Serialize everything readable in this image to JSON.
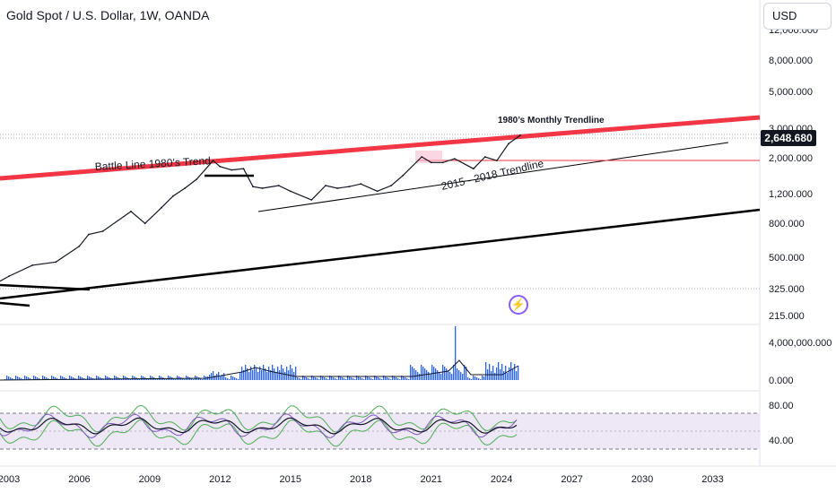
{
  "header": {
    "title": "Gold Spot / U.S. Dollar, 1W, OANDA",
    "currency": "USD"
  },
  "price_tag": "2,648.680",
  "chart_data": [
    {
      "type": "line",
      "title": "Gold Spot / U.S. Dollar, 1W, OANDA",
      "scale": "log",
      "y_ticks": [
        "12,000.000",
        "8,000.000",
        "5,000.000",
        "3,000.000",
        "2,000.000",
        "1,200.000",
        "800.000",
        "500.000",
        "325.000",
        "215.000"
      ],
      "x_ticks": [
        "2003",
        "2006",
        "2009",
        "2012",
        "2015",
        "2018",
        "2021",
        "2024",
        "2027",
        "2030",
        "2033"
      ],
      "x": [
        2002.2,
        2003,
        2004,
        2005,
        2006,
        2006.4,
        2007,
        2008.2,
        2008.8,
        2009.5,
        2010,
        2010.5,
        2011,
        2011.7,
        2012,
        2012.5,
        2013,
        2013.4,
        2013.8,
        2014.5,
        2015,
        2015.9,
        2016.5,
        2017,
        2017.5,
        2018,
        2018.7,
        2019.3,
        2019.8,
        2020.6,
        2021,
        2021.5,
        2022,
        2022.8,
        2023.3,
        2023.8,
        2024.3,
        2024.8
      ],
      "y": [
        310,
        360,
        420,
        440,
        550,
        650,
        680,
        900,
        760,
        950,
        1120,
        1250,
        1420,
        1850,
        1700,
        1620,
        1650,
        1280,
        1250,
        1300,
        1200,
        1060,
        1300,
        1250,
        1280,
        1330,
        1200,
        1300,
        1500,
        1950,
        1800,
        1800,
        1900,
        1650,
        1950,
        1850,
        2350,
        2650
      ],
      "annotations": [
        "Battle Line 1980’s Trend",
        "1980’s Monthly Trendline",
        "2015 - 2018 Trendline"
      ],
      "last_price": "2,648.680",
      "colors": {
        "candles": "#131722",
        "battle_line": "#f23645",
        "trendline": "#000000",
        "horizontal": "#f23645"
      }
    },
    {
      "type": "bar",
      "title": "",
      "y_ticks": [
        "4,000,000.000",
        "0.000"
      ],
      "colors": {
        "up": "#f23645",
        "down": "#2962ff",
        "ma": "#131722"
      }
    },
    {
      "type": "line",
      "title": "",
      "y_ticks": [
        "80.00",
        "40.00"
      ],
      "band": [
        70,
        30
      ],
      "colors": {
        "main": "#131722",
        "fast": "#7e57c2",
        "envelope": "#4caf50",
        "band_fill": "#ede7f6"
      }
    }
  ]
}
